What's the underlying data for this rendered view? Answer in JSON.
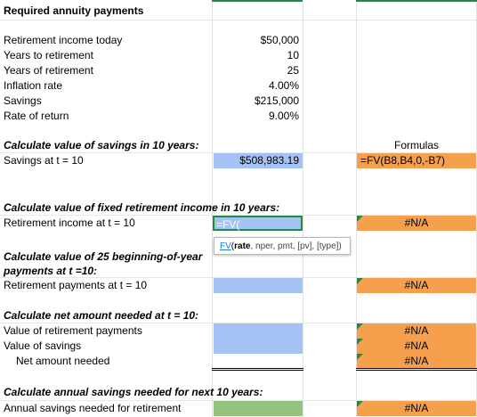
{
  "title": "Required annuity payments",
  "inputs": [
    {
      "label": "Retirement income today",
      "value": "$50,000"
    },
    {
      "label": "Years to retirement",
      "value": "10"
    },
    {
      "label": "Years of retirement",
      "value": "25"
    },
    {
      "label": "Inflation rate",
      "value": "4.00%"
    },
    {
      "label": "Savings",
      "value": "$215,000"
    },
    {
      "label": "Rate of return",
      "value": "9.00%"
    }
  ],
  "section1": {
    "heading": "Calculate value of savings in 10 years:",
    "row_label": "Savings at t = 10",
    "value": "$508,983.19",
    "formulas_header": "Formulas",
    "formula": "=FV(B8,B4,0,-B7)"
  },
  "section2": {
    "heading": "Calculate value of fixed retirement income in 10 years:",
    "row_label": "Retirement income at t = 10",
    "editing": "=FV(",
    "result": "#N/A"
  },
  "tooltip": {
    "fn": "FV",
    "open": "(",
    "arg1": "rate",
    "rest": ", nper, pmt, [pv], [type])"
  },
  "section3": {
    "heading_line1": "Calculate value of 25 beginning-of-year",
    "heading_line2": "payments at t =10:",
    "row_label": "Retirement payments at t = 10",
    "result": "#N/A"
  },
  "section4": {
    "heading": "Calculate net amount needed at t = 10:",
    "rows": [
      {
        "label": "Value of retirement payments",
        "result": "#N/A"
      },
      {
        "label": "Value of savings",
        "result": "#N/A"
      },
      {
        "label": "Net amount needed",
        "result": "#N/A"
      }
    ]
  },
  "section5": {
    "heading": "Calculate annual savings needed for next 10 years:",
    "row_label": "Annual savings needed for retirement",
    "result": "#N/A"
  }
}
